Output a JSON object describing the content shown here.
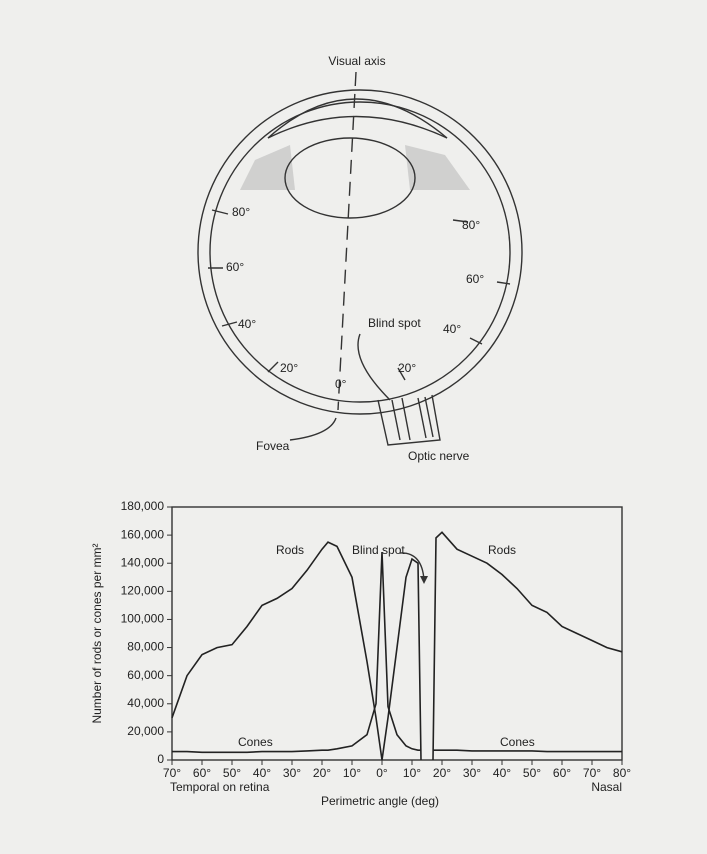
{
  "diagram": {
    "visual_axis": "Visual axis",
    "temporal_angles": [
      "80°",
      "60°",
      "40°",
      "20°"
    ],
    "nasal_angles": [
      "80°",
      "60°",
      "40°",
      "20°"
    ],
    "fovea_angle": "0°",
    "blind_spot": "Blind spot",
    "fovea": "Fovea",
    "optic_nerve": "Optic nerve"
  },
  "chart_data": {
    "type": "line",
    "y_label": "Number of rods or cones per mm²",
    "x_label": "Perimetric angle (deg)",
    "x_left_label": "Temporal on retina",
    "x_right_label": "Nasal",
    "annotations": [
      "Rods",
      "Rods",
      "Cones",
      "Cones",
      "Blind spot"
    ],
    "x": [
      -70,
      -65,
      -60,
      -55,
      -50,
      -45,
      -40,
      -35,
      -30,
      -25,
      -20,
      -18,
      -15,
      -10,
      -5,
      -2,
      0,
      2,
      5,
      8,
      10,
      12,
      13,
      15,
      17,
      18,
      20,
      25,
      30,
      35,
      40,
      45,
      50,
      55,
      60,
      65,
      70,
      75,
      80
    ],
    "series": [
      {
        "name": "Rods",
        "color": "#222222",
        "values": [
          30000,
          60000,
          75000,
          80000,
          82000,
          95000,
          110000,
          115000,
          122000,
          135000,
          150000,
          155000,
          152000,
          130000,
          70000,
          30000,
          0,
          30000,
          80000,
          130000,
          143000,
          140000,
          0,
          null,
          0,
          158000,
          162000,
          150000,
          145000,
          140000,
          132000,
          122000,
          110000,
          105000,
          95000,
          90000,
          85000,
          80000,
          77000
        ]
      },
      {
        "name": "Cones",
        "color": "#222222",
        "values": [
          6000,
          6000,
          5500,
          5500,
          5500,
          5500,
          6000,
          6000,
          6000,
          6500,
          7000,
          7000,
          8000,
          10000,
          18000,
          40000,
          148000,
          38000,
          18000,
          10000,
          8000,
          7000,
          7000,
          null,
          7000,
          7000,
          7000,
          7000,
          6500,
          6500,
          6500,
          6500,
          6500,
          6000,
          6000,
          6000,
          6000,
          6000,
          6000
        ]
      }
    ],
    "xlim": [
      -70,
      80
    ],
    "xticks": [
      {
        "value": -70,
        "label": "70°"
      },
      {
        "value": -60,
        "label": "60°"
      },
      {
        "value": -50,
        "label": "50°"
      },
      {
        "value": -40,
        "label": "40°"
      },
      {
        "value": -30,
        "label": "30°"
      },
      {
        "value": -20,
        "label": "20°"
      },
      {
        "value": -10,
        "label": "10°"
      },
      {
        "value": 0,
        "label": "0°"
      },
      {
        "value": 10,
        "label": "10°"
      },
      {
        "value": 20,
        "label": "20°"
      },
      {
        "value": 30,
        "label": "30°"
      },
      {
        "value": 40,
        "label": "40°"
      },
      {
        "value": 50,
        "label": "50°"
      },
      {
        "value": 60,
        "label": "60°"
      },
      {
        "value": 70,
        "label": "70°"
      },
      {
        "value": 80,
        "label": "80°"
      }
    ],
    "ylim": [
      0,
      180000
    ],
    "yticks": [
      0,
      {
        "value": 20000,
        "label": "20,000"
      },
      {
        "value": 40000,
        "label": "40,000"
      },
      {
        "value": 60000,
        "label": "60,000"
      },
      {
        "value": 80000,
        "label": "80,000"
      },
      {
        "value": 100000,
        "label": "100,000"
      },
      {
        "value": 120000,
        "label": "120,000"
      },
      {
        "value": 140000,
        "label": "140,000"
      },
      {
        "value": 160000,
        "label": "160,000"
      },
      {
        "value": 180000,
        "label": "180,000"
      }
    ],
    "grid": false
  }
}
